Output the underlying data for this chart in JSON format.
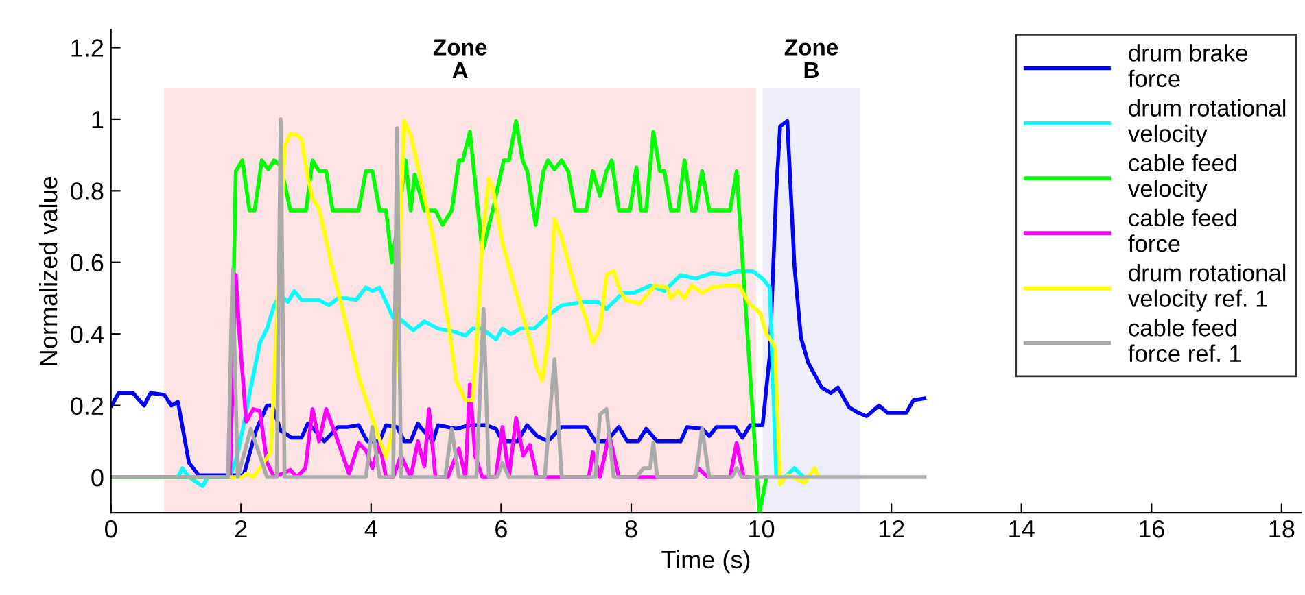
{
  "chart_data": {
    "type": "line",
    "xlabel": "Time (s)",
    "ylabel": "Normalized value",
    "xlim": [
      0,
      18.3
    ],
    "ylim": [
      -0.1,
      1.25
    ],
    "xticks": [
      0,
      2,
      4,
      6,
      8,
      10,
      12,
      14,
      16,
      18
    ],
    "yticks": [
      0,
      0.2,
      0.4,
      0.6,
      0.8,
      1,
      1.2
    ],
    "grid": false,
    "legend": "top right",
    "marker": "none",
    "line_style": "solid",
    "bands": [
      {
        "axis": "x",
        "from": 0.82,
        "to": 9.92,
        "label": "Zone\nA",
        "color": "#fde3e3"
      },
      {
        "axis": "x",
        "from": 10.02,
        "to": 11.52,
        "label": "Zone\nB",
        "color": "#eeeefb"
      }
    ],
    "series": [
      {
        "name": "drum brake\nforce",
        "color": "#0000ff",
        "x": [
          0.01,
          0.12,
          0.34,
          0.51,
          0.61,
          0.82,
          0.93,
          1.03,
          1.2,
          1.35,
          2.04,
          2.23,
          2.4,
          2.48,
          2.61,
          2.78,
          2.93,
          3.03,
          3.14,
          3.28,
          3.49,
          3.64,
          3.81,
          3.94,
          4.13,
          4.23,
          4.4,
          4.51,
          4.61,
          4.72,
          4.78,
          4.95,
          5.03,
          5.31,
          5.52,
          5.77,
          5.92,
          6.02,
          6.25,
          6.4,
          6.55,
          6.72,
          6.93,
          7.31,
          7.45,
          7.62,
          7.81,
          7.94,
          8.11,
          8.23,
          8.4,
          8.76,
          8.86,
          9.09,
          9.2,
          9.31,
          9.6,
          9.71,
          9.83,
          10.02,
          10.13,
          10.23,
          10.29,
          10.4,
          10.51,
          10.61,
          10.72,
          10.93,
          11.07,
          11.18,
          11.35,
          11.49,
          11.62,
          11.81,
          11.94,
          12.23,
          12.34,
          12.51
        ],
        "values": [
          0.2,
          0.235,
          0.235,
          0.2,
          0.235,
          0.23,
          0.2,
          0.21,
          0.04,
          0.005,
          0.005,
          0.13,
          0.2,
          0.2,
          0.13,
          0.11,
          0.11,
          0.15,
          0.13,
          0.1,
          0.14,
          0.14,
          0.145,
          0.1,
          0.1,
          0.145,
          0.14,
          0.1,
          0.1,
          0.15,
          0.135,
          0.1,
          0.145,
          0.135,
          0.145,
          0.145,
          0.135,
          0.1,
          0.1,
          0.145,
          0.115,
          0.1,
          0.14,
          0.14,
          0.1,
          0.1,
          0.14,
          0.1,
          0.1,
          0.135,
          0.1,
          0.1,
          0.14,
          0.135,
          0.115,
          0.14,
          0.14,
          0.11,
          0.145,
          0.145,
          0.34,
          0.8,
          0.98,
          0.995,
          0.59,
          0.39,
          0.32,
          0.25,
          0.235,
          0.25,
          0.195,
          0.18,
          0.17,
          0.2,
          0.18,
          0.18,
          0.215,
          0.22
        ]
      },
      {
        "name": "drum rotational\nvelocity",
        "color": "#00ffff",
        "x": [
          1.03,
          1.1,
          1.2,
          1.41,
          1.49,
          1.83,
          1.94,
          2.04,
          2.15,
          2.29,
          2.4,
          2.51,
          2.61,
          2.72,
          2.82,
          2.93,
          3.2,
          3.35,
          3.49,
          3.62,
          3.77,
          3.92,
          4.02,
          4.13,
          4.34,
          4.46,
          4.65,
          4.82,
          5.03,
          5.31,
          5.45,
          5.56,
          5.71,
          5.92,
          6.02,
          6.15,
          6.29,
          6.51,
          6.78,
          6.93,
          7.28,
          7.49,
          7.62,
          7.87,
          8.04,
          8.29,
          8.51,
          8.76,
          8.99,
          9.24,
          9.45,
          9.62,
          9.87,
          10.02,
          10.13,
          10.23,
          10.36,
          10.51,
          10.65
        ],
        "values": [
          0.0,
          0.025,
          0.0,
          -0.025,
          0.0,
          0.0,
          0.06,
          0.145,
          0.25,
          0.375,
          0.415,
          0.48,
          0.51,
          0.49,
          0.52,
          0.495,
          0.495,
          0.48,
          0.5,
          0.5,
          0.495,
          0.53,
          0.52,
          0.53,
          0.445,
          0.44,
          0.41,
          0.435,
          0.415,
          0.405,
          0.395,
          0.415,
          0.415,
          0.385,
          0.415,
          0.4,
          0.415,
          0.415,
          0.46,
          0.48,
          0.49,
          0.49,
          0.47,
          0.515,
          0.515,
          0.535,
          0.52,
          0.565,
          0.555,
          0.57,
          0.565,
          0.575,
          0.575,
          0.555,
          0.53,
          0.0,
          0.0,
          0.025,
          0.0
        ]
      },
      {
        "name": "cable feed\nvelocity",
        "color": "#00ff00",
        "x": [
          0,
          1.83,
          1.92,
          2.02,
          2.13,
          2.21,
          2.32,
          2.42,
          2.51,
          2.61,
          2.76,
          3.0,
          3.1,
          3.2,
          3.31,
          3.41,
          3.81,
          3.92,
          4.02,
          4.13,
          4.23,
          4.32,
          4.4,
          4.53,
          4.61,
          4.67,
          4.82,
          4.99,
          5.1,
          5.24,
          5.35,
          5.41,
          5.52,
          5.71,
          5.87,
          6.04,
          6.12,
          6.23,
          6.33,
          6.4,
          6.53,
          6.65,
          6.72,
          6.82,
          6.93,
          7.03,
          7.14,
          7.31,
          7.41,
          7.52,
          7.62,
          7.7,
          7.81,
          7.98,
          8.08,
          8.15,
          8.23,
          8.34,
          8.44,
          8.51,
          8.61,
          8.72,
          8.82,
          8.93,
          8.99,
          9.09,
          9.2,
          9.52,
          9.62,
          9.97,
          10.08
        ],
        "values": [
          0,
          0,
          0.855,
          0.885,
          0.745,
          0.745,
          0.885,
          0.86,
          0.885,
          0.87,
          0.745,
          0.745,
          0.885,
          0.855,
          0.855,
          0.745,
          0.745,
          0.855,
          0.855,
          0.745,
          0.745,
          0.6,
          0.695,
          0.885,
          0.745,
          0.845,
          0.745,
          0.745,
          0.705,
          0.745,
          0.885,
          0.885,
          0.965,
          0.63,
          0.745,
          0.885,
          0.885,
          0.995,
          0.885,
          0.855,
          0.705,
          0.855,
          0.885,
          0.86,
          0.885,
          0.855,
          0.745,
          0.745,
          0.855,
          0.785,
          0.855,
          0.885,
          0.745,
          0.745,
          0.865,
          0.745,
          0.745,
          0.965,
          0.855,
          0.855,
          0.745,
          0.745,
          0.885,
          0.745,
          0.745,
          0.855,
          0.745,
          0.745,
          0.855,
          -0.1,
          0
        ]
      },
      {
        "name": "cable feed\nforce",
        "color": "#ff00ff",
        "x": [
          1.83,
          1.92,
          1.98,
          2.08,
          2.19,
          2.29,
          2.4,
          2.51,
          2.76,
          2.86,
          2.99,
          3.1,
          3.2,
          3.31,
          3.49,
          3.66,
          3.81,
          3.92,
          4.02,
          4.13,
          4.23,
          4.34,
          4.46,
          4.61,
          4.72,
          4.82,
          4.89,
          4.99,
          5.18,
          5.35,
          5.45,
          5.52,
          5.6,
          5.71,
          5.92,
          6.02,
          6.12,
          6.23,
          6.34,
          6.44,
          6.55,
          7.35,
          7.41,
          7.52,
          7.66,
          7.81,
          8.97,
          9.03,
          9.18,
          9.52,
          9.62,
          9.73,
          9.8
        ],
        "values": [
          0,
          0.565,
          0.39,
          0.155,
          0.19,
          0.185,
          0.04,
          0,
          0.02,
          0,
          0.025,
          0.19,
          0.1,
          0.19,
          0.1,
          0.01,
          0.095,
          0.075,
          0.025,
          0.095,
          0,
          0,
          0.06,
          0,
          0.1,
          0.03,
          0.19,
          0,
          0,
          0.08,
          0,
          0.26,
          0.06,
          0,
          0,
          0.14,
          0,
          0.165,
          0.06,
          0.09,
          0,
          0,
          0.07,
          0,
          0.12,
          0,
          0,
          0.025,
          0,
          0,
          0.095,
          0,
          0
        ]
      },
      {
        "name": "drum rotational\nvelocity ref. 1",
        "color": "#ffff00",
        "x": [
          1.83,
          2.02,
          2.08,
          2.19,
          2.29,
          2.46,
          2.67,
          2.76,
          2.86,
          2.93,
          3.03,
          3.1,
          3.2,
          3.41,
          3.62,
          3.81,
          3.98,
          4.15,
          4.23,
          4.34,
          4.51,
          4.61,
          4.76,
          4.97,
          5.18,
          5.31,
          5.45,
          5.56,
          5.62,
          5.71,
          5.81,
          5.87,
          6.02,
          6.23,
          6.44,
          6.55,
          6.63,
          6.72,
          6.82,
          6.93,
          7.14,
          7.31,
          7.41,
          7.52,
          7.62,
          7.73,
          7.83,
          7.92,
          8.13,
          8.25,
          8.36,
          8.55,
          8.61,
          8.72,
          8.82,
          8.93,
          9.09,
          9.24,
          9.45,
          9.66,
          9.81,
          9.98,
          10.08,
          10.21,
          10.29,
          10.4,
          10.67,
          10.82,
          10.88
        ],
        "values": [
          0,
          0,
          0.01,
          0,
          0.025,
          0.07,
          0.925,
          0.96,
          0.955,
          0.945,
          0.835,
          0.78,
          0.75,
          0.58,
          0.425,
          0.28,
          0.185,
          0.095,
          0.055,
          0.135,
          0.995,
          0.955,
          0.835,
          0.655,
          0.44,
          0.27,
          0.215,
          0.215,
          0.365,
          0.655,
          0.835,
          0.81,
          0.655,
          0.515,
          0.385,
          0.305,
          0.27,
          0.375,
          0.72,
          0.67,
          0.53,
          0.44,
          0.375,
          0.415,
          0.565,
          0.575,
          0.52,
          0.495,
          0.485,
          0.51,
          0.535,
          0.53,
          0.5,
          0.52,
          0.5,
          0.535,
          0.515,
          0.53,
          0.535,
          0.535,
          0.485,
          0.46,
          0.4,
          0.365,
          -0.02,
          0.005,
          -0.015,
          0.025,
          0
        ]
      },
      {
        "name": "cable feed\nforce ref. 1",
        "color": "#aaaaaa",
        "x": [
          0,
          1.8,
          1.87,
          1.95,
          2.15,
          2.29,
          2.4,
          2.55,
          2.61,
          2.67,
          3.92,
          4.02,
          4.13,
          4.34,
          4.4,
          4.46,
          5.14,
          5.24,
          5.35,
          5.62,
          5.73,
          5.81,
          5.94,
          6.02,
          6.12,
          6.67,
          6.82,
          6.93,
          7.45,
          7.52,
          7.62,
          7.73,
          8.08,
          8.19,
          8.29,
          8.34,
          8.4,
          8.99,
          9.09,
          9.2,
          9.55,
          9.62,
          9.7,
          12.51
        ],
        "values": [
          0,
          0,
          0.58,
          0,
          0.135,
          0.06,
          0,
          0,
          1.0,
          0,
          0,
          0.14,
          0,
          0,
          0.975,
          0,
          0,
          0.135,
          0,
          0,
          0.47,
          0,
          0,
          0.04,
          0,
          0,
          0.33,
          0,
          0,
          0.175,
          0.19,
          0,
          0,
          0.025,
          0.025,
          0.095,
          0,
          0,
          0.135,
          0,
          0,
          0.025,
          0,
          0
        ]
      }
    ]
  }
}
